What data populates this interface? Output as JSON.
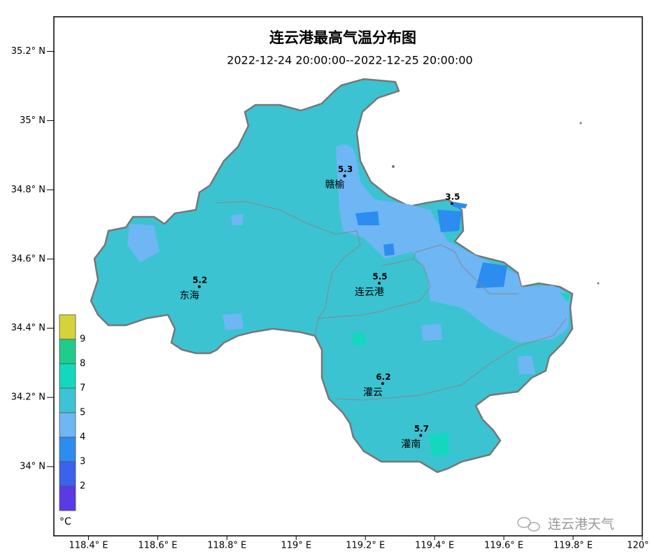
{
  "header": {
    "title": "连云港最高气温分布图",
    "subtitle": "2022-12-24 20:00:00--2022-12-25 20:00:00"
  },
  "axes": {
    "xlim": [
      118.3,
      120.0
    ],
    "xticks": [
      {
        "value": 118.4,
        "label": "118.4° E"
      },
      {
        "value": 118.6,
        "label": "118.6° E"
      },
      {
        "value": 118.8,
        "label": "118.8° E"
      },
      {
        "value": 119.0,
        "label": "119° E"
      },
      {
        "value": 119.2,
        "label": "119.2° E"
      },
      {
        "value": 119.4,
        "label": "119.4° E"
      },
      {
        "value": 119.6,
        "label": "119.6° E"
      },
      {
        "value": 119.8,
        "label": "119.8° E"
      },
      {
        "value": 120.0,
        "label": "120° E"
      }
    ],
    "ylim": [
      33.8,
      35.3
    ],
    "yticks": [
      {
        "value": 35.2,
        "label": "35.2° N"
      },
      {
        "value": 35.0,
        "label": "35° N"
      },
      {
        "value": 34.8,
        "label": "34.8° N"
      },
      {
        "value": 34.6,
        "label": "34.6° N"
      },
      {
        "value": 34.4,
        "label": "34.4° N"
      },
      {
        "value": 34.2,
        "label": "34.2° N"
      },
      {
        "value": 34.0,
        "label": "34° N"
      }
    ]
  },
  "stations": [
    {
      "name": "赣榆",
      "value": 5.3,
      "lon": 119.14,
      "lat": 34.84
    },
    {
      "value": 3.5,
      "lon": 119.45,
      "lat": 34.76
    },
    {
      "name": "连云港",
      "value": 5.5,
      "lon": 119.24,
      "lat": 34.53
    },
    {
      "name": "东海",
      "value": 5.2,
      "lon": 118.72,
      "lat": 34.52
    },
    {
      "name": "灌云",
      "value": 6.2,
      "lon": 119.25,
      "lat": 34.24
    },
    {
      "name": "灌南",
      "value": 5.7,
      "lon": 119.36,
      "lat": 34.09
    }
  ],
  "legend": {
    "colors": [
      "#d6d23a",
      "#20cc8c",
      "#14d8bd",
      "#3cc4d4",
      "#6eb6f4",
      "#2c8cf0",
      "#3a62ec",
      "#5a3ae4"
    ],
    "labels": [
      9,
      8,
      7,
      5,
      4,
      3,
      2
    ],
    "unit": "°C"
  },
  "watermark": "连云港天气"
}
